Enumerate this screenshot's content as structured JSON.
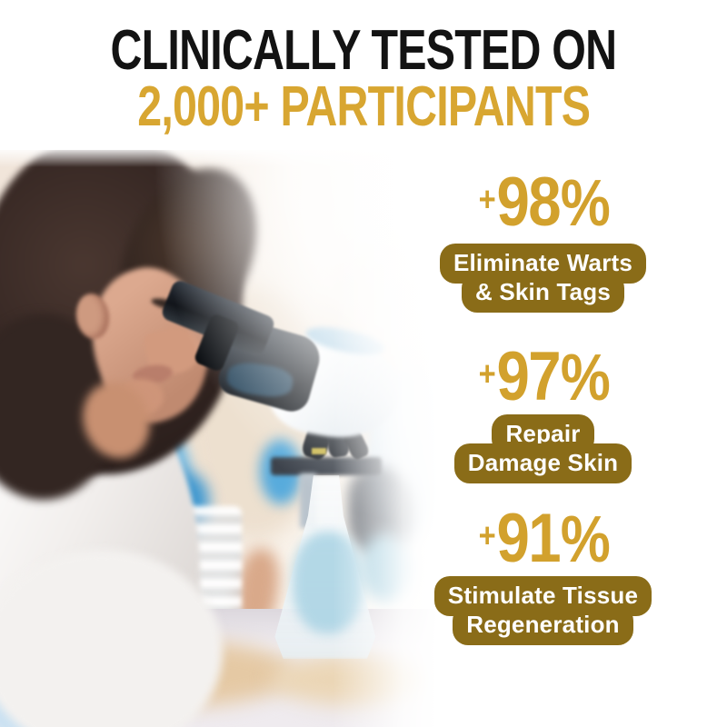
{
  "header": {
    "line1": "CLINICALLY TESTED ON",
    "line2": "2,000+ PARTICIPANTS"
  },
  "stats": [
    {
      "plus": "+",
      "number": "98",
      "percent": "%",
      "label_line1": "Eliminate Warts",
      "label_line2": "& Skin Tags"
    },
    {
      "plus": "+",
      "number": "97",
      "percent": "%",
      "label_line1": "Repair",
      "label_line2": "Damage Skin"
    },
    {
      "plus": "+",
      "number": "91",
      "percent": "%",
      "label_line1": "Stimulate Tissue",
      "label_line2": "Regeneration"
    }
  ],
  "photo": {
    "description": "Female scientist with dark curly hair in a white lab coat looking into a microscope eyepiece, blurred laboratory with blue gloves, glassware and conical flask in background"
  },
  "colors": {
    "title_black": "#131313",
    "title_gold": "#D8A631",
    "stat_gold": "#D2A12D",
    "badge_background": "#8A6C18",
    "badge_text": "#FFFFFF"
  }
}
